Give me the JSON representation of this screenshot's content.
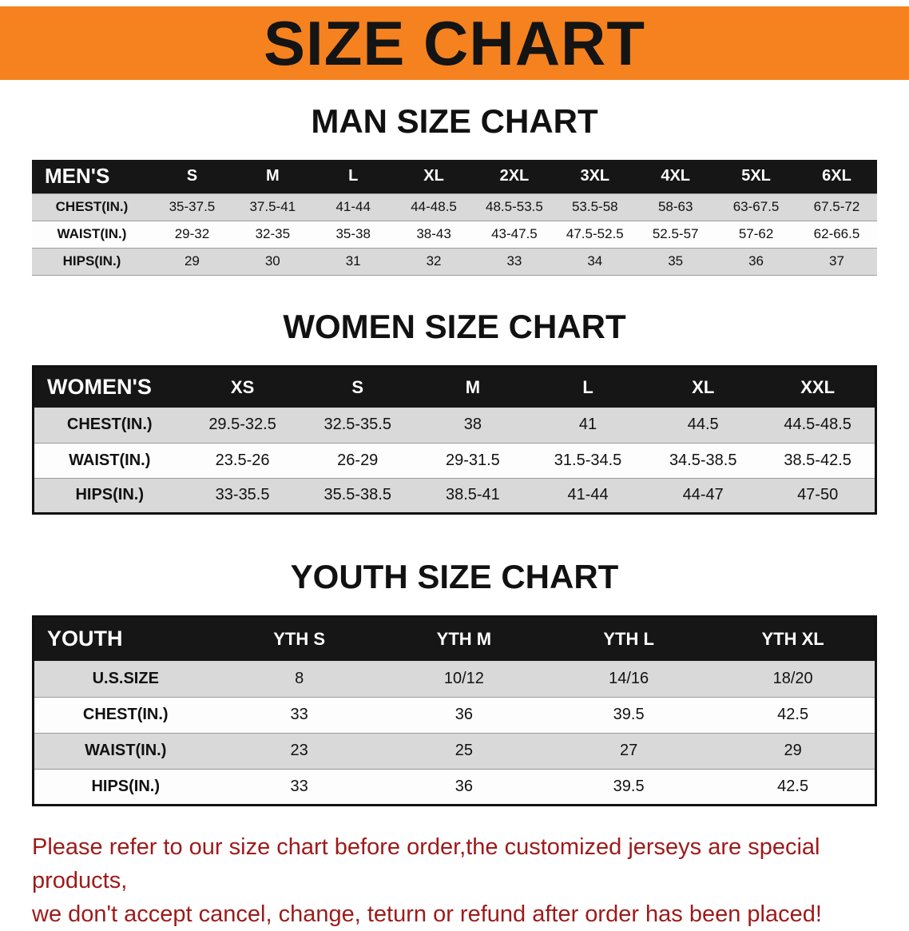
{
  "banner": {
    "title": "SIZE CHART",
    "bg_color": "#f5821f",
    "text_color": "#141414"
  },
  "men": {
    "heading": "MAN SIZE CHART",
    "table": {
      "header": [
        "MEN'S",
        "S",
        "M",
        "L",
        "XL",
        "2XL",
        "3XL",
        "4XL",
        "5XL",
        "6XL"
      ],
      "rows": [
        {
          "label": "CHEST(IN.)",
          "values": [
            "35-37.5",
            "37.5-41",
            "41-44",
            "44-48.5",
            "48.5-53.5",
            "53.5-58",
            "58-63",
            "63-67.5",
            "67.5-72"
          ]
        },
        {
          "label": "WAIST(IN.)",
          "values": [
            "29-32",
            "32-35",
            "35-38",
            "38-43",
            "43-47.5",
            "47.5-52.5",
            "52.5-57",
            "57-62",
            "62-66.5"
          ]
        },
        {
          "label": "HIPS(IN.)",
          "values": [
            "29",
            "30",
            "31",
            "32",
            "33",
            "34",
            "35",
            "36",
            "37"
          ]
        }
      ]
    }
  },
  "women": {
    "heading": "WOMEN SIZE CHART",
    "table": {
      "header": [
        "WOMEN'S",
        "XS",
        "S",
        "M",
        "L",
        "XL",
        "XXL"
      ],
      "rows": [
        {
          "label": "CHEST(IN.)",
          "values": [
            "29.5-32.5",
            "32.5-35.5",
            "38",
            "41",
            "44.5",
            "44.5-48.5"
          ]
        },
        {
          "label": "WAIST(IN.)",
          "values": [
            "23.5-26",
            "26-29",
            "29-31.5",
            "31.5-34.5",
            "34.5-38.5",
            "38.5-42.5"
          ]
        },
        {
          "label": "HIPS(IN.)",
          "values": [
            "33-35.5",
            "35.5-38.5",
            "38.5-41",
            "41-44",
            "44-47",
            "47-50"
          ]
        }
      ]
    }
  },
  "youth": {
    "heading": "YOUTH SIZE CHART",
    "table": {
      "header": [
        "YOUTH",
        "YTH S",
        "YTH M",
        "YTH L",
        "YTH XL"
      ],
      "rows": [
        {
          "label": "U.S.SIZE",
          "values": [
            "8",
            "10/12",
            "14/16",
            "18/20"
          ]
        },
        {
          "label": "CHEST(IN.)",
          "values": [
            "33",
            "36",
            "39.5",
            "42.5"
          ]
        },
        {
          "label": "WAIST(IN.)",
          "values": [
            "23",
            "25",
            "27",
            "29"
          ]
        },
        {
          "label": "HIPS(IN.)",
          "values": [
            "33",
            "36",
            "39.5",
            "42.5"
          ]
        }
      ]
    }
  },
  "disclaimer": {
    "line1": "Please refer to our size chart before order,the customized jerseys are special products,",
    "line2": "we don't accept cancel, change, teturn or refund after order has been placed!",
    "color": "#9e1a1a"
  }
}
